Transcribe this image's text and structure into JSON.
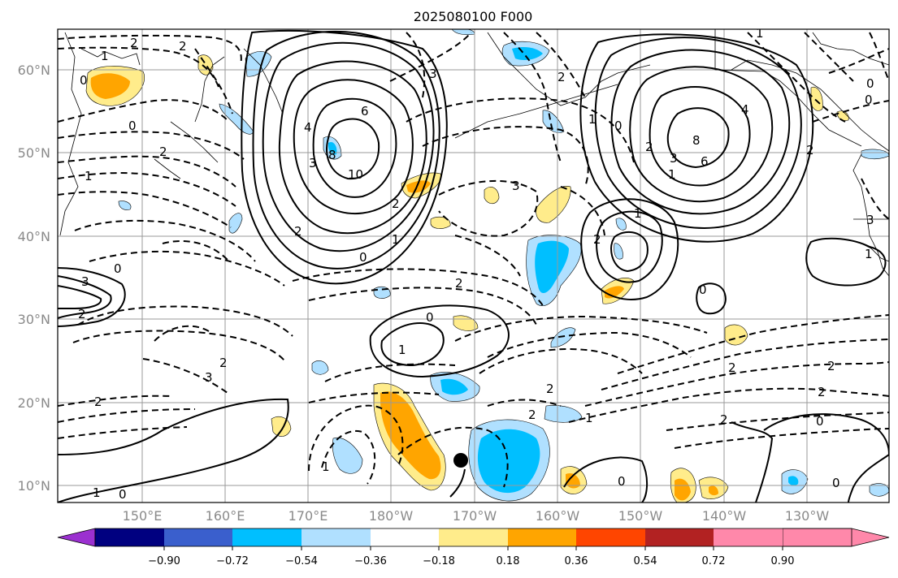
{
  "title": "2025080100 F000",
  "lat_labels": [
    "60°N",
    "50°N",
    "40°N",
    "30°N",
    "20°N",
    "10°N"
  ],
  "lon_labels": [
    "150°E",
    "160°E",
    "170°E",
    "180°W",
    "170°W",
    "160°W",
    "150°W",
    "140°W",
    "130°W"
  ],
  "colorbar": {
    "ticks": [
      "−0.90",
      "−0.72",
      "−0.54",
      "−0.36",
      "−0.18",
      "0.18",
      "0.36",
      "0.54",
      "0.72",
      "0.90"
    ],
    "colors": [
      "#9b30d0",
      "#000080",
      "#3a5fcd",
      "#00bfff",
      "#b0e0ff",
      "#ffffff",
      "#ffec8b",
      "#ffa500",
      "#ff4500",
      "#b22222",
      "#ff88aa"
    ]
  },
  "contour_labels": [
    "2",
    "1",
    "0",
    "2",
    "2",
    "1",
    "0",
    "3",
    "2",
    "2",
    "0",
    "2",
    "3",
    "6",
    "8",
    "10",
    "4",
    "3",
    "2",
    "1",
    "0",
    "2",
    "3",
    "2",
    "1",
    "0",
    "8",
    "6",
    "4",
    "3",
    "2",
    "1",
    "1",
    "0",
    "1",
    "2",
    "2",
    "3",
    "2",
    "0",
    "1",
    "2",
    "1",
    "0",
    "1",
    "0",
    "2",
    "2",
    "2",
    "3",
    "2",
    "0",
    "0",
    "1",
    "1",
    "0",
    "0",
    "2"
  ],
  "marker": "storm-center"
}
